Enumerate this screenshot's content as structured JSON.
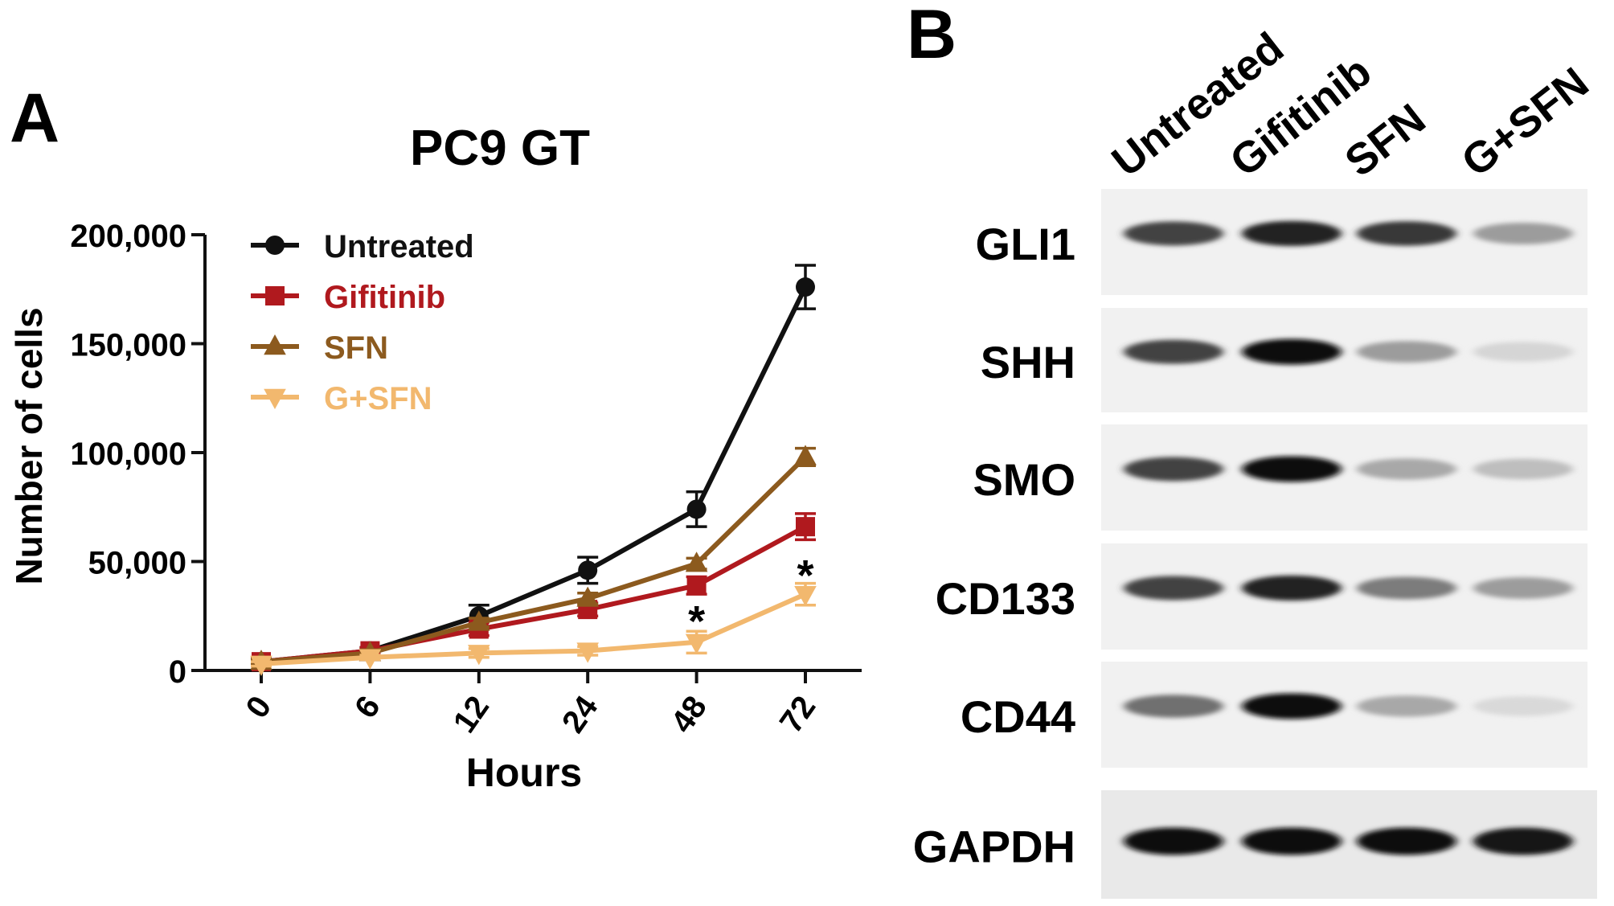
{
  "panel_a": {
    "label": "A",
    "chart_data": {
      "type": "line",
      "title": "PC9 GT",
      "xlabel": "Hours",
      "ylabel": "Number of cells",
      "categories": [
        "0",
        "6",
        "12",
        "24",
        "48",
        "72"
      ],
      "ylim": [
        0,
        200000
      ],
      "yticks": [
        0,
        50000,
        100000,
        150000,
        200000
      ],
      "ytick_labels": [
        "0",
        "50,000",
        "100,000",
        "150,000",
        "200,000"
      ],
      "grid": false,
      "legend_position": "top-left",
      "series": [
        {
          "name": "Untreated",
          "color": "#111111",
          "marker": "circle",
          "values": [
            4000,
            9000,
            25000,
            46000,
            74000,
            176000
          ],
          "errors": [
            1500,
            1500,
            5000,
            6000,
            8000,
            10000
          ]
        },
        {
          "name": "Gifitinib",
          "color": "#b0191e",
          "marker": "square",
          "values": [
            4000,
            9000,
            19000,
            28000,
            39000,
            66000
          ],
          "errors": [
            1000,
            1500,
            3000,
            3000,
            4000,
            6000
          ]
        },
        {
          "name": "SFN",
          "color": "#8c5a1e",
          "marker": "triangle-up",
          "values": [
            4000,
            8000,
            22000,
            33000,
            49000,
            98000
          ],
          "errors": [
            1000,
            1500,
            2000,
            2500,
            2500,
            4000
          ]
        },
        {
          "name": "G+SFN",
          "color": "#f2b86e",
          "marker": "triangle-down",
          "values": [
            3000,
            6000,
            8000,
            9000,
            13000,
            35000
          ],
          "errors": [
            1000,
            1000,
            2000,
            2000,
            5000,
            5000
          ]
        }
      ],
      "annotations": [
        {
          "text": "*",
          "x": "48",
          "y": 27000
        },
        {
          "text": "*",
          "x": "72",
          "y": 48000
        }
      ]
    }
  },
  "panel_b": {
    "label": "B",
    "lanes": [
      "Untreated",
      "Gifitinib",
      "SFN",
      "G+SFN"
    ],
    "blot": {
      "lane_intensity": [
        {
          "protein": "GLI1",
          "values": [
            0.75,
            0.9,
            0.8,
            0.35
          ]
        },
        {
          "protein": "SHH",
          "values": [
            0.75,
            1.0,
            0.35,
            0.1
          ]
        },
        {
          "protein": "SMO",
          "values": [
            0.75,
            1.0,
            0.3,
            0.2
          ]
        },
        {
          "protein": "CD133",
          "values": [
            0.75,
            0.9,
            0.5,
            0.35
          ]
        },
        {
          "protein": "CD44",
          "values": [
            0.55,
            1.0,
            0.3,
            0.08
          ]
        },
        {
          "protein": "GAPDH",
          "values": [
            1.0,
            1.0,
            1.0,
            0.95
          ]
        }
      ]
    }
  }
}
